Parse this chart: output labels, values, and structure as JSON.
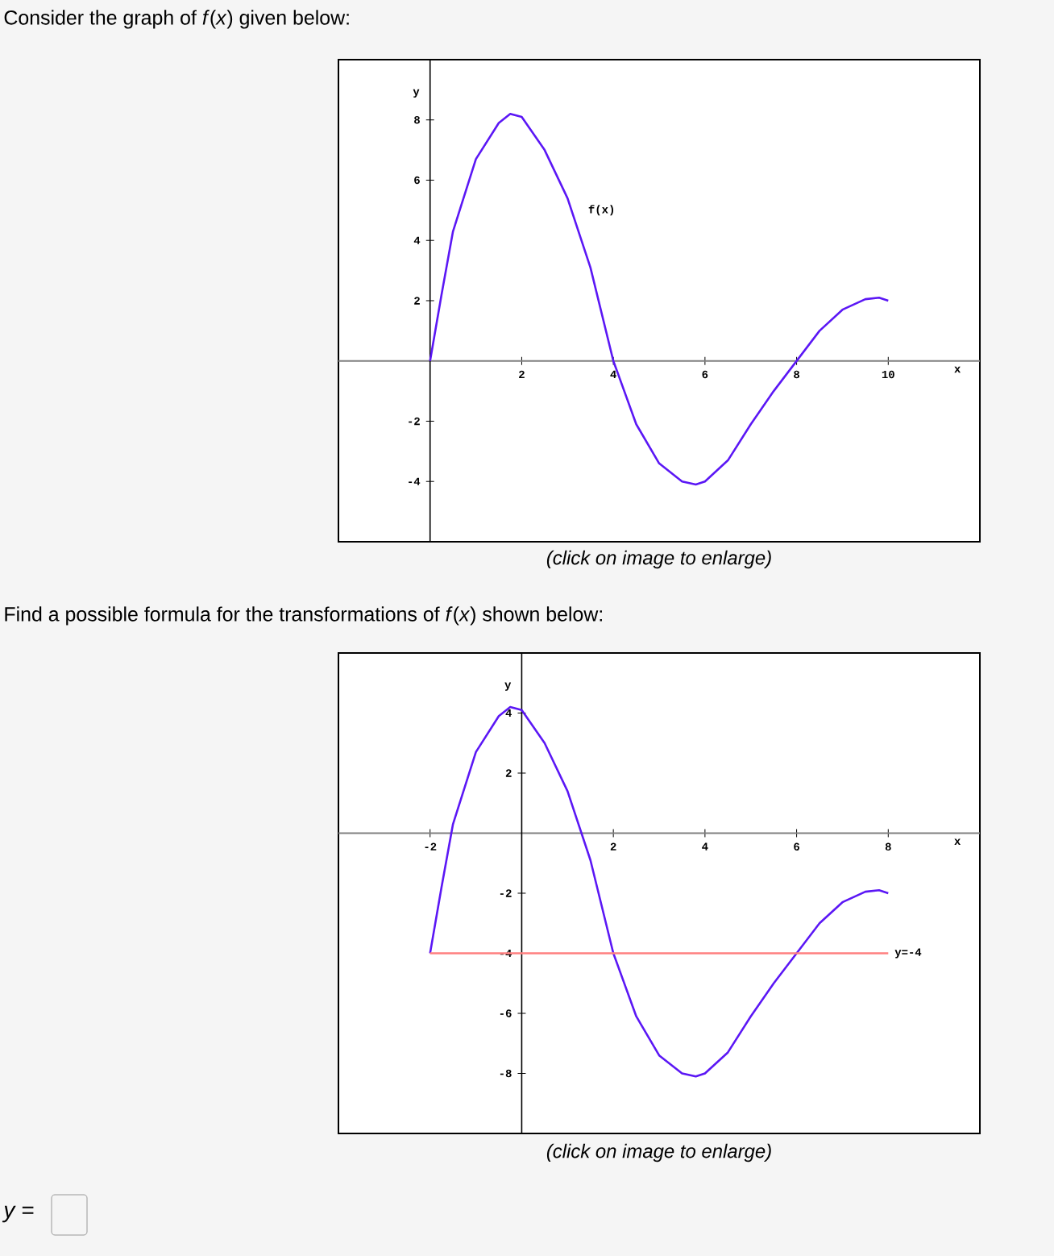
{
  "chart_data": [
    {
      "type": "line",
      "title": "Consider the graph of *f*(*x*) given below:",
      "xlabel": "x",
      "ylabel": "y",
      "xlim": [
        -2,
        12
      ],
      "ylim": [
        -6,
        10
      ],
      "xticks": [
        2,
        4,
        6,
        8,
        10
      ],
      "yticks": [
        -4,
        -2,
        2,
        4,
        6,
        8
      ],
      "annotations": [
        "(click on image to enlarge)"
      ],
      "series": [
        {
          "name": "f(x)",
          "color": "#5b17f5",
          "x": [
            0,
            0.25,
            0.5,
            1,
            1.5,
            1.75,
            2,
            2.5,
            3,
            3.5,
            4,
            4.5,
            5,
            5.5,
            5.8,
            6,
            6.5,
            7,
            7.5,
            8,
            8.5,
            9,
            9.5,
            9.8,
            10
          ],
          "values": [
            0,
            2.2,
            4.3,
            6.7,
            7.9,
            8.2,
            8.1,
            7,
            5.4,
            3.1,
            0,
            -2.1,
            -3.4,
            -4,
            -4.1,
            -4,
            -3.3,
            -2.1,
            -1,
            0,
            1,
            1.7,
            2.05,
            2.1,
            2
          ]
        }
      ]
    },
    {
      "type": "line",
      "title": "Find a possible formula for the transformations of *f*(*x*) shown below:",
      "xlabel": "x",
      "ylabel": "y",
      "xlim": [
        -4,
        10
      ],
      "ylim": [
        -10,
        6
      ],
      "xticks": [
        -2,
        2,
        4,
        6,
        8
      ],
      "yticks": [
        -8,
        -6,
        -4,
        -2,
        2,
        4
      ],
      "annotations": [
        "(click on image to enlarge)",
        "y ="
      ],
      "series": [
        {
          "color": "#5b17f5",
          "x": [
            -2,
            -1.75,
            -1.5,
            -1,
            -0.5,
            -0.25,
            0,
            0.5,
            1,
            1.5,
            2,
            2.5,
            3,
            3.5,
            3.8,
            4,
            4.5,
            5,
            5.5,
            6,
            6.5,
            7,
            7.5,
            7.8,
            8
          ],
          "values": [
            -4,
            -1.8,
            0.3,
            2.7,
            3.9,
            4.2,
            4.1,
            3,
            1.4,
            -0.9,
            -4,
            -6.1,
            -7.4,
            -8,
            -8.1,
            -8,
            -7.3,
            -6.1,
            -5,
            -4,
            -3,
            -2.3,
            -1.95,
            -1.9,
            -2
          ]
        },
        {
          "name": "y=-4",
          "color": "#ff8080",
          "x": [
            -2,
            8
          ],
          "values": [
            -4,
            -4
          ]
        }
      ]
    }
  ]
}
